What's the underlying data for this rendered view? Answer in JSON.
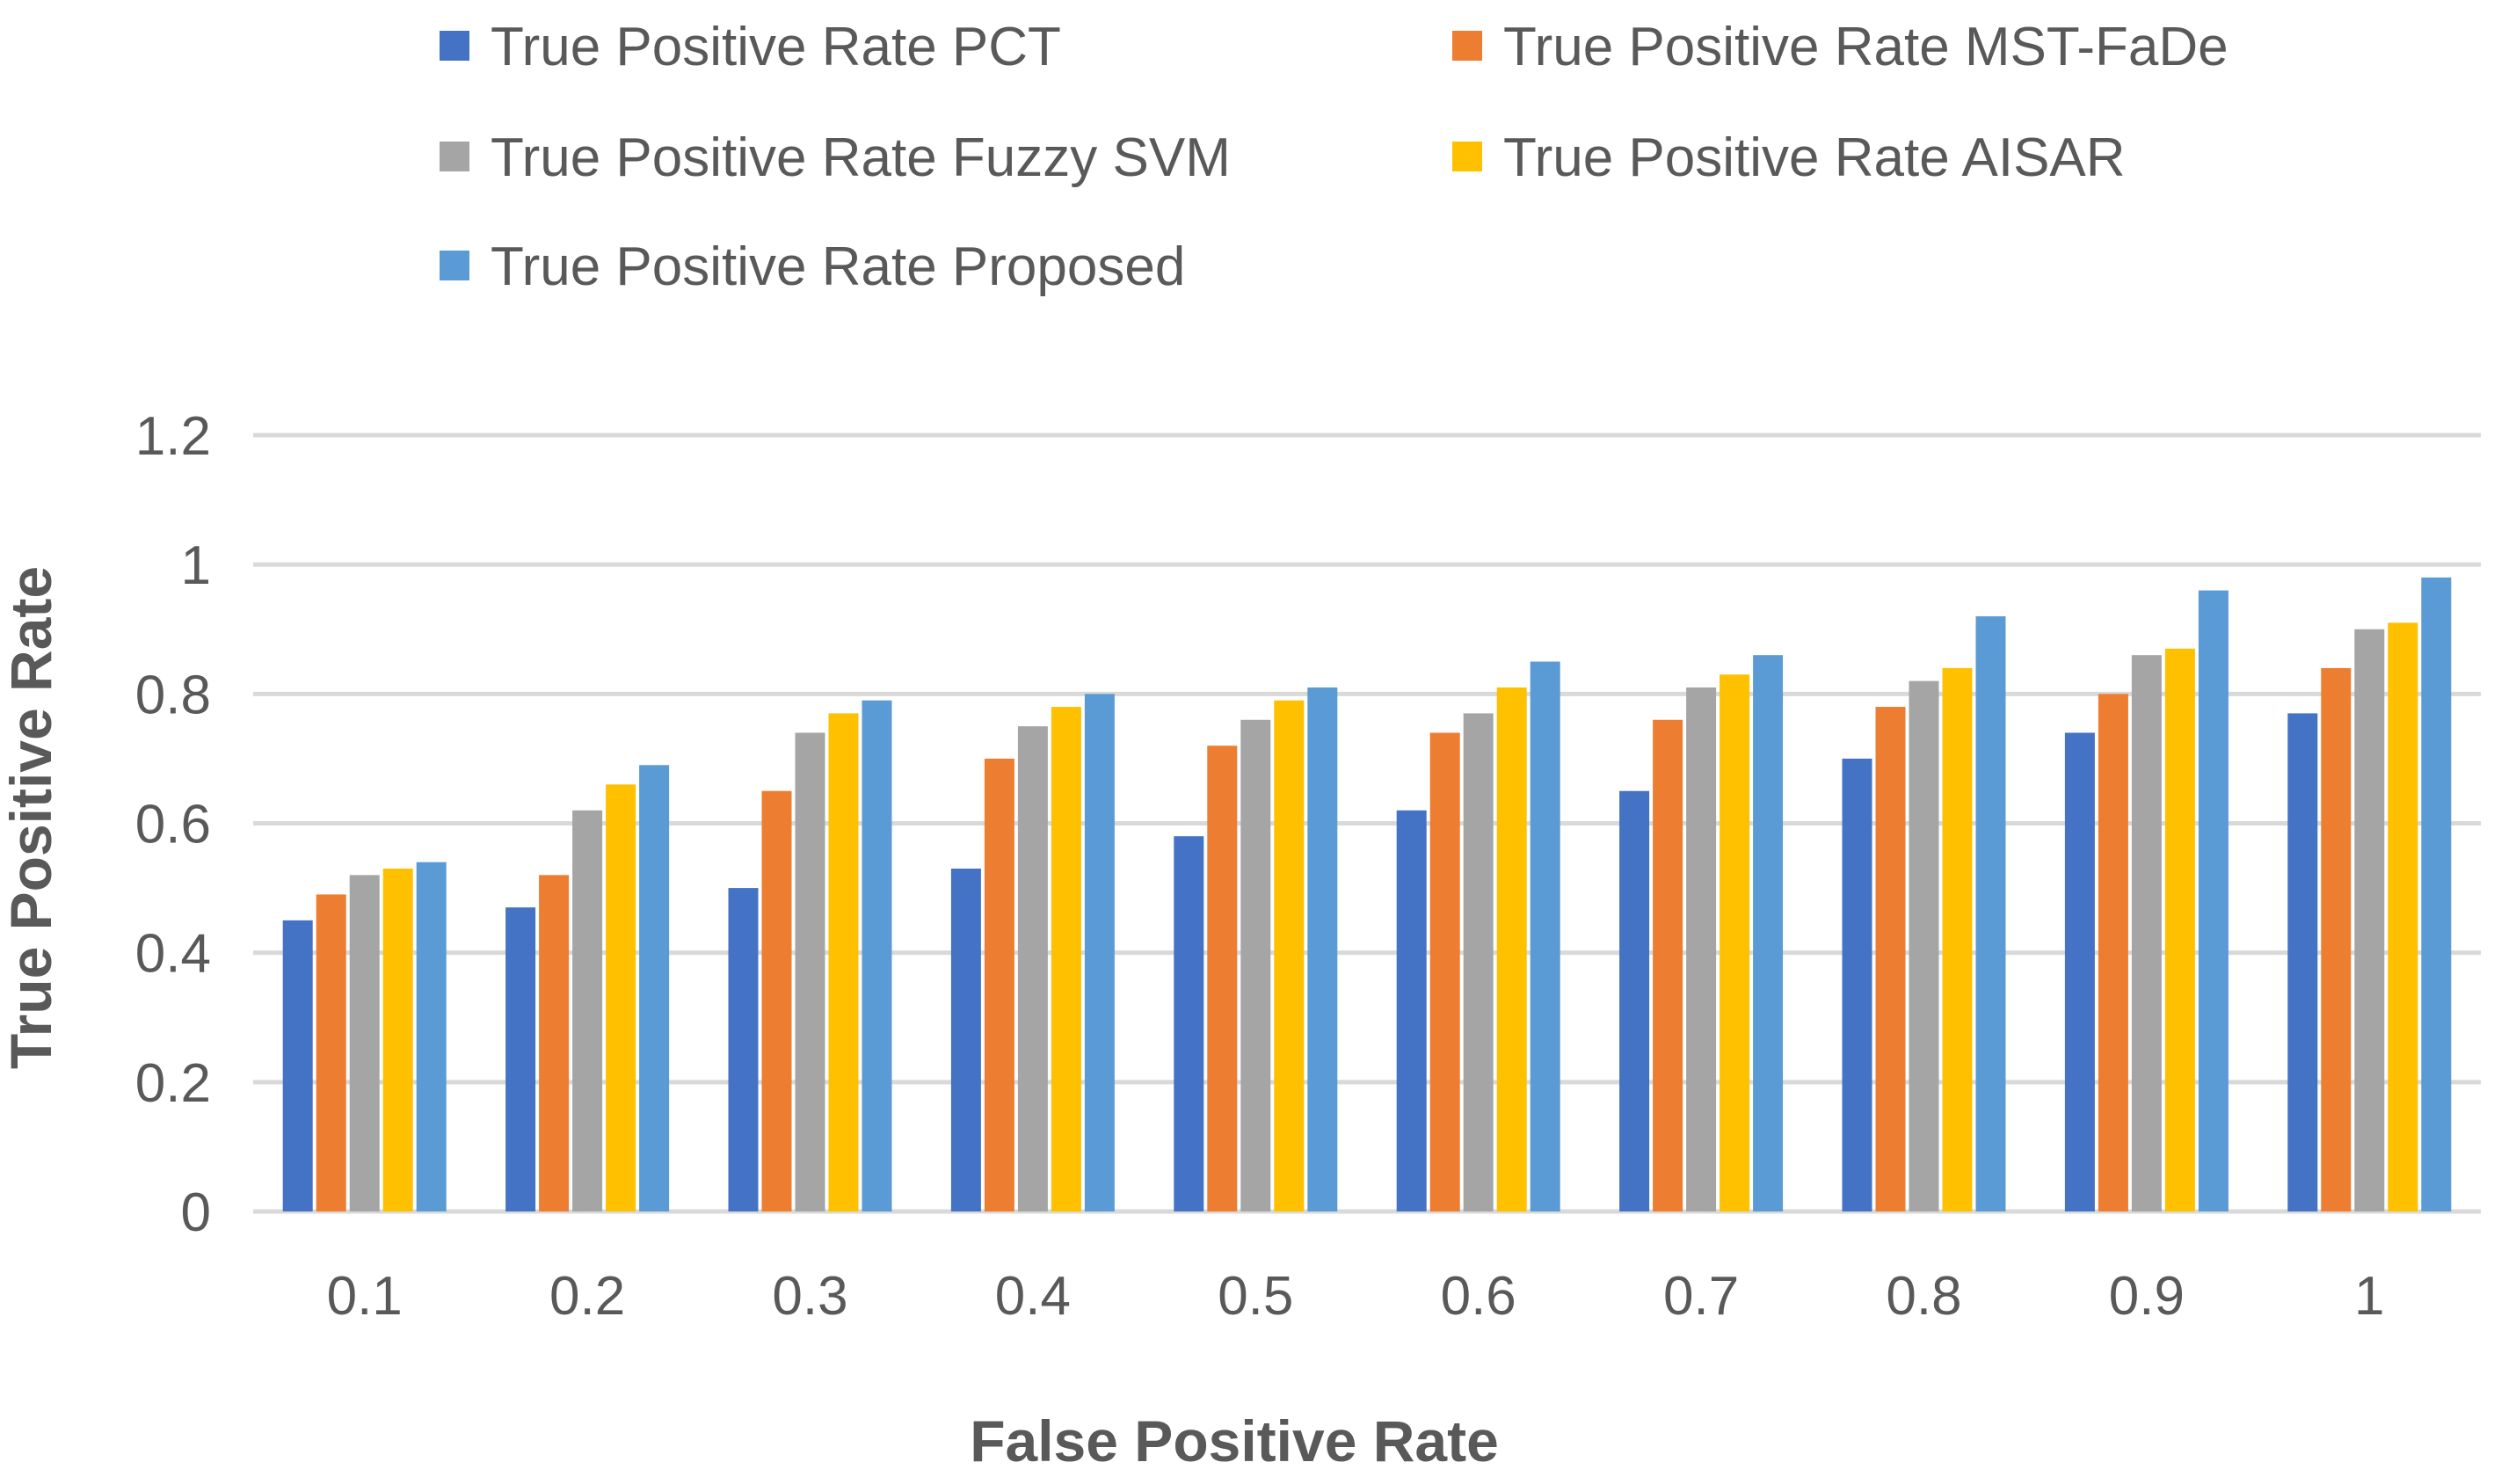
{
  "chart_data": {
    "type": "bar",
    "title": "",
    "xlabel": "False Positive Rate",
    "ylabel": "True Positive Rate",
    "categories": [
      "0.1",
      "0.2",
      "0.3",
      "0.4",
      "0.5",
      "0.6",
      "0.7",
      "0.8",
      "0.9",
      "1"
    ],
    "ylim": [
      0,
      1.2
    ],
    "yticks": [
      "0",
      "0.2",
      "0.4",
      "0.6",
      "0.8",
      "1",
      "1.2"
    ],
    "grid": true,
    "legend_position": "top",
    "series": [
      {
        "name": "True Positive Rate PCT",
        "color": "#4472c4",
        "values": [
          0.45,
          0.47,
          0.5,
          0.53,
          0.58,
          0.62,
          0.65,
          0.7,
          0.74,
          0.77
        ]
      },
      {
        "name": "True Positive Rate MST-FaDe",
        "color": "#ed7d31",
        "values": [
          0.49,
          0.52,
          0.65,
          0.7,
          0.72,
          0.74,
          0.76,
          0.78,
          0.8,
          0.84
        ]
      },
      {
        "name": "True Positive Rate Fuzzy SVM",
        "color": "#a5a5a5",
        "values": [
          0.52,
          0.62,
          0.74,
          0.75,
          0.76,
          0.77,
          0.81,
          0.82,
          0.86,
          0.9
        ]
      },
      {
        "name": "True Positive Rate AISAR",
        "color": "#ffc000",
        "values": [
          0.53,
          0.66,
          0.77,
          0.78,
          0.79,
          0.81,
          0.83,
          0.84,
          0.87,
          0.91
        ]
      },
      {
        "name": "True Positive Rate Proposed",
        "color": "#5b9bd5",
        "values": [
          0.54,
          0.69,
          0.79,
          0.8,
          0.81,
          0.85,
          0.86,
          0.92,
          0.96,
          0.98
        ]
      }
    ]
  }
}
